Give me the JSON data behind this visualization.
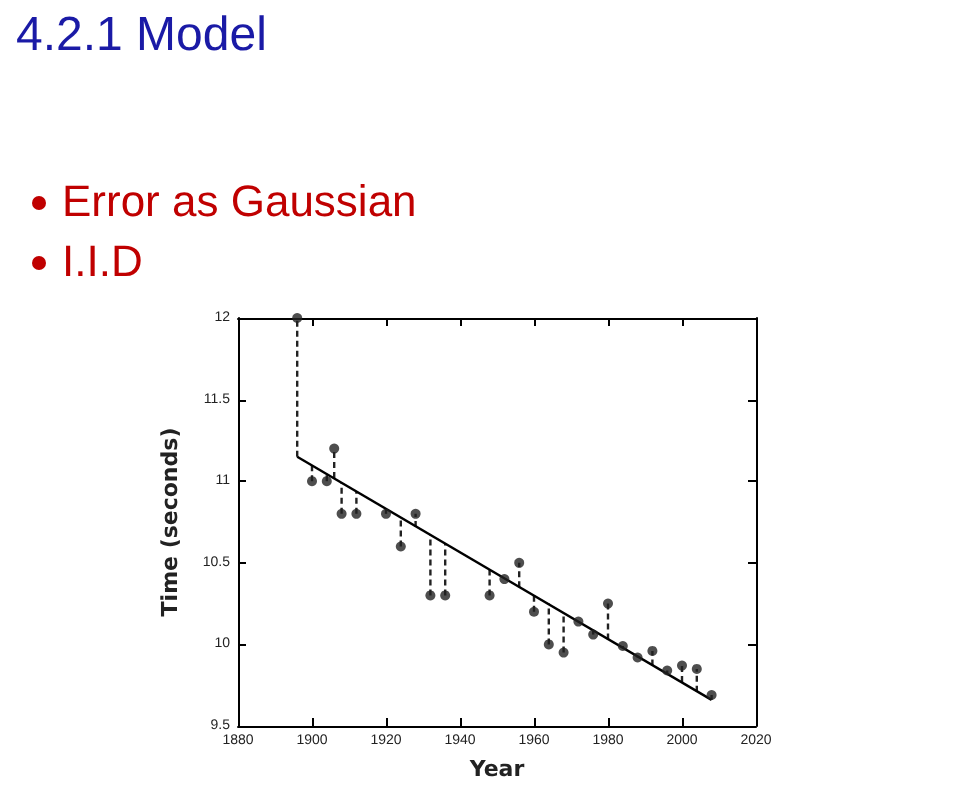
{
  "chart_data": {
    "type": "scatter",
    "title": "4.2.1 Model",
    "annotations": [
      "Error as Gaussian",
      "I.I.D"
    ],
    "xlabel": "Year",
    "ylabel": "Time (seconds)",
    "x": [
      1896,
      1900,
      1904,
      1906,
      1908,
      1912,
      1920,
      1924,
      1928,
      1932,
      1936,
      1948,
      1952,
      1956,
      1960,
      1964,
      1968,
      1972,
      1976,
      1980,
      1984,
      1988,
      1992,
      1996,
      2000,
      2004,
      2008
    ],
    "series": [
      {
        "color": "#222222",
        "values": [
          12.0,
          11.0,
          11.0,
          11.2,
          10.8,
          10.8,
          10.8,
          10.6,
          10.8,
          10.3,
          10.3,
          10.3,
          10.4,
          10.5,
          10.2,
          10.0,
          9.95,
          10.14,
          10.06,
          10.25,
          9.99,
          9.92,
          9.96,
          9.84,
          9.87,
          9.85,
          9.69
        ],
        "errors": [
          [
            11.15,
            12.0
          ],
          [
            11.0,
            11.1
          ],
          [
            11.0,
            11.04
          ],
          [
            11.02,
            11.2
          ],
          [
            10.8,
            10.99
          ],
          [
            10.8,
            10.94
          ],
          [
            10.8,
            10.83
          ],
          [
            10.6,
            10.78
          ],
          [
            10.72,
            10.8
          ],
          [
            10.3,
            10.67
          ],
          [
            10.3,
            10.62
          ],
          [
            10.3,
            10.46
          ],
          [
            10.4,
            10.4
          ],
          [
            10.35,
            10.5
          ],
          [
            10.2,
            10.3
          ],
          [
            10.0,
            10.25
          ],
          [
            9.95,
            10.19
          ],
          [
            10.14,
            10.14
          ],
          [
            10.06,
            10.09
          ],
          [
            10.03,
            10.25
          ],
          [
            9.98,
            9.99
          ],
          [
            9.92,
            9.93
          ],
          [
            9.87,
            9.96
          ],
          [
            9.82,
            9.84
          ],
          [
            9.77,
            9.87
          ],
          [
            9.71,
            9.85
          ],
          [
            9.66,
            9.69
          ]
        ]
      },
      {
        "type": "line",
        "color": "#000000",
        "marker": "none",
        "x": [
          1896,
          2008
        ],
        "values": [
          11.15,
          9.66
        ]
      }
    ],
    "xlim": [
      1880,
      2020
    ],
    "xticks": [
      1880,
      1900,
      1920,
      1940,
      1960,
      1980,
      2000,
      2020
    ],
    "ylim": [
      9.5,
      12
    ],
    "yticks": [
      9.5,
      10,
      10.5,
      11,
      11.5,
      12
    ],
    "grid": false,
    "marker": "circle"
  }
}
